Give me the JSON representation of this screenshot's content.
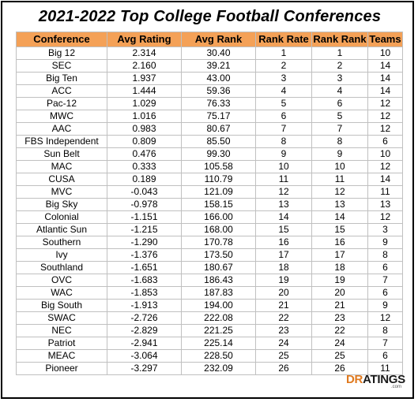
{
  "title": "2021-2022 Top College Football Conferences",
  "table": {
    "headers": [
      "Conference",
      "Avg Rating",
      "Avg Rank",
      "Rank Rate",
      "Rank Rank",
      "Teams"
    ],
    "rows": [
      [
        "Big 12",
        "2.314",
        "30.40",
        "1",
        "1",
        "10"
      ],
      [
        "SEC",
        "2.160",
        "39.21",
        "2",
        "2",
        "14"
      ],
      [
        "Big Ten",
        "1.937",
        "43.00",
        "3",
        "3",
        "14"
      ],
      [
        "ACC",
        "1.444",
        "59.36",
        "4",
        "4",
        "14"
      ],
      [
        "Pac-12",
        "1.029",
        "76.33",
        "5",
        "6",
        "12"
      ],
      [
        "MWC",
        "1.016",
        "75.17",
        "6",
        "5",
        "12"
      ],
      [
        "AAC",
        "0.983",
        "80.67",
        "7",
        "7",
        "12"
      ],
      [
        "FBS Independent",
        "0.809",
        "85.50",
        "8",
        "8",
        "6"
      ],
      [
        "Sun Belt",
        "0.476",
        "99.30",
        "9",
        "9",
        "10"
      ],
      [
        "MAC",
        "0.333",
        "105.58",
        "10",
        "10",
        "12"
      ],
      [
        "CUSA",
        "0.189",
        "110.79",
        "11",
        "11",
        "14"
      ],
      [
        "MVC",
        "-0.043",
        "121.09",
        "12",
        "12",
        "11"
      ],
      [
        "Big Sky",
        "-0.978",
        "158.15",
        "13",
        "13",
        "13"
      ],
      [
        "Colonial",
        "-1.151",
        "166.00",
        "14",
        "14",
        "12"
      ],
      [
        "Atlantic Sun",
        "-1.215",
        "168.00",
        "15",
        "15",
        "3"
      ],
      [
        "Southern",
        "-1.290",
        "170.78",
        "16",
        "16",
        "9"
      ],
      [
        "Ivy",
        "-1.376",
        "173.50",
        "17",
        "17",
        "8"
      ],
      [
        "Southland",
        "-1.651",
        "180.67",
        "18",
        "18",
        "6"
      ],
      [
        "OVC",
        "-1.683",
        "186.43",
        "19",
        "19",
        "7"
      ],
      [
        "WAC",
        "-1.853",
        "187.83",
        "20",
        "20",
        "6"
      ],
      [
        "Big South",
        "-1.913",
        "194.00",
        "21",
        "21",
        "9"
      ],
      [
        "SWAC",
        "-2.726",
        "222.08",
        "22",
        "23",
        "12"
      ],
      [
        "NEC",
        "-2.829",
        "221.25",
        "23",
        "22",
        "8"
      ],
      [
        "Patriot",
        "-2.941",
        "225.14",
        "24",
        "24",
        "7"
      ],
      [
        "MEAC",
        "-3.064",
        "228.50",
        "25",
        "25",
        "6"
      ],
      [
        "Pioneer",
        "-3.297",
        "232.09",
        "26",
        "26",
        "11"
      ]
    ]
  },
  "logo": {
    "dr": "DR",
    "rest": "ATINGS",
    "suffix": ".com"
  },
  "colors": {
    "header_bg": "#f4a157",
    "logo_orange": "#e07a1f"
  }
}
